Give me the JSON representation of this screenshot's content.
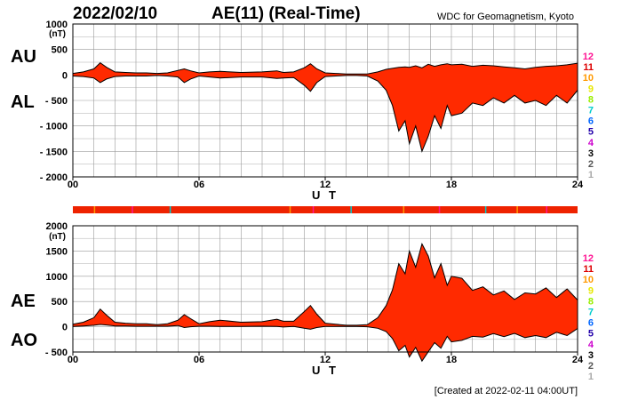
{
  "header": {
    "date": "2022/02/10",
    "title": "AE(11) (Real-Time)",
    "source": "WDC for Geomagnetism, Kyoto"
  },
  "footer": {
    "created": "[Created at 2022-02-11 04:00UT]"
  },
  "station_legend": [
    {
      "label": "12",
      "color": "#ff1493"
    },
    {
      "label": "11",
      "color": "#dd0000"
    },
    {
      "label": "10",
      "color": "#ff9900"
    },
    {
      "label": "9",
      "color": "#e8e800"
    },
    {
      "label": "8",
      "color": "#99ee00"
    },
    {
      "label": "7",
      "color": "#00cccc"
    },
    {
      "label": "6",
      "color": "#0066ff"
    },
    {
      "label": "5",
      "color": "#2200aa"
    },
    {
      "label": "4",
      "color": "#cc00cc"
    },
    {
      "label": "3",
      "color": "#000000"
    },
    {
      "label": "2",
      "color": "#555555"
    },
    {
      "label": "1",
      "color": "#aaaaaa"
    }
  ],
  "station_bar": {
    "colors": [
      "#ee2200",
      "#ff9900",
      "#ff1493",
      "#00cccc"
    ]
  },
  "colors": {
    "fill": "#ff2a00",
    "line": "#000000",
    "grid": "#999999"
  },
  "chart_data": [
    {
      "type": "area",
      "name": "AU/AL",
      "labels_left": [
        "AU",
        "AL"
      ],
      "xlabel": "U T",
      "ylabel": "(nT)",
      "xlim": [
        0,
        24
      ],
      "ylim": [
        -2000,
        1000
      ],
      "xticks": [
        "00",
        "06",
        "12",
        "18",
        "24"
      ],
      "yticks": [
        "1000",
        "500",
        "0",
        "- 500",
        "- 1000",
        "- 1500",
        "- 2000"
      ],
      "ytick_values": [
        1000,
        500,
        0,
        -500,
        -1000,
        -1500,
        -2000
      ],
      "x_hours": [
        0,
        0.5,
        1.0,
        1.3,
        1.6,
        2.0,
        2.5,
        3.0,
        3.5,
        4.0,
        4.5,
        5.0,
        5.3,
        5.6,
        6.0,
        6.5,
        7.0,
        8.0,
        9.0,
        9.7,
        10.0,
        10.5,
        11.0,
        11.3,
        11.6,
        12.0,
        12.5,
        13.0,
        13.5,
        14.0,
        14.5,
        14.9,
        15.2,
        15.5,
        15.8,
        16.0,
        16.3,
        16.6,
        16.9,
        17.2,
        17.5,
        17.8,
        18.0,
        18.5,
        19.0,
        19.5,
        20.0,
        20.5,
        21.0,
        21.5,
        22.0,
        22.5,
        23.0,
        23.5,
        24.0
      ],
      "series": [
        {
          "name": "AU",
          "values": [
            30,
            60,
            120,
            240,
            150,
            60,
            50,
            40,
            40,
            30,
            40,
            90,
            120,
            80,
            40,
            60,
            70,
            50,
            60,
            80,
            50,
            60,
            140,
            220,
            120,
            40,
            30,
            20,
            20,
            20,
            60,
            110,
            130,
            150,
            160,
            150,
            180,
            140,
            210,
            170,
            200,
            220,
            200,
            210,
            170,
            190,
            180,
            160,
            140,
            120,
            150,
            170,
            180,
            200,
            230
          ]
        },
        {
          "name": "AL",
          "values": [
            -20,
            -30,
            -60,
            -150,
            -80,
            -30,
            -20,
            -20,
            -20,
            -10,
            -20,
            -40,
            -150,
            -80,
            -20,
            -40,
            -60,
            -40,
            -40,
            -70,
            -60,
            -50,
            -200,
            -320,
            -150,
            -30,
            -20,
            -10,
            -10,
            -20,
            -120,
            -300,
            -600,
            -1100,
            -900,
            -1350,
            -1000,
            -1500,
            -1200,
            -800,
            -1050,
            -600,
            -800,
            -750,
            -550,
            -600,
            -450,
            -550,
            -400,
            -550,
            -500,
            -600,
            -400,
            -550,
            -300
          ]
        }
      ]
    },
    {
      "type": "area",
      "name": "AE/AO",
      "labels_left": [
        "AE",
        "AO"
      ],
      "xlabel": "U T",
      "ylabel": "(nT)",
      "xlim": [
        0,
        24
      ],
      "ylim": [
        -500,
        2000
      ],
      "xticks": [
        "00",
        "06",
        "12",
        "18",
        "24"
      ],
      "yticks": [
        "2000",
        "1500",
        "1000",
        "500",
        "0",
        "- 500"
      ],
      "ytick_values": [
        2000,
        1500,
        1000,
        500,
        0,
        -500
      ],
      "x_hours": [
        0,
        0.5,
        1.0,
        1.3,
        1.6,
        2.0,
        2.5,
        3.0,
        3.5,
        4.0,
        4.5,
        5.0,
        5.3,
        5.6,
        6.0,
        6.5,
        7.0,
        8.0,
        9.0,
        9.7,
        10.0,
        10.5,
        11.0,
        11.3,
        11.6,
        12.0,
        12.5,
        13.0,
        13.5,
        14.0,
        14.5,
        14.9,
        15.2,
        15.5,
        15.8,
        16.0,
        16.3,
        16.6,
        16.9,
        17.2,
        17.5,
        17.8,
        18.0,
        18.5,
        19.0,
        19.5,
        20.0,
        20.5,
        21.0,
        21.5,
        22.0,
        22.5,
        23.0,
        23.5,
        24.0
      ],
      "series": [
        {
          "name": "AE",
          "values": [
            50,
            90,
            180,
            350,
            230,
            90,
            70,
            60,
            60,
            40,
            60,
            130,
            240,
            160,
            60,
            100,
            130,
            90,
            100,
            150,
            110,
            110,
            300,
            420,
            250,
            70,
            50,
            30,
            30,
            40,
            180,
            420,
            730,
            1250,
            1050,
            1500,
            1180,
            1640,
            1400,
            970,
            1250,
            820,
            1000,
            960,
            720,
            790,
            630,
            710,
            540,
            670,
            650,
            770,
            580,
            750,
            530
          ]
        },
        {
          "name": "AO",
          "values": [
            5,
            15,
            30,
            45,
            35,
            15,
            15,
            10,
            10,
            10,
            10,
            25,
            -15,
            0,
            10,
            10,
            5,
            5,
            10,
            5,
            -5,
            5,
            -30,
            -50,
            -15,
            5,
            5,
            5,
            5,
            0,
            -30,
            -95,
            -235,
            -475,
            -370,
            -600,
            -410,
            -680,
            -495,
            -315,
            -425,
            -190,
            -300,
            -270,
            -190,
            -205,
            -135,
            -195,
            -130,
            -215,
            -175,
            -215,
            -110,
            -175,
            -35
          ]
        }
      ]
    }
  ]
}
